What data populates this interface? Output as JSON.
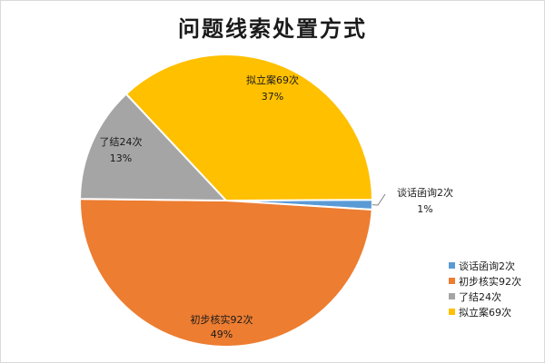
{
  "chart_data": {
    "type": "pie",
    "title": "问题线索处置方式",
    "slices": [
      {
        "name": "谈话函询2次",
        "value": 2,
        "percent_label": "1%",
        "color": "#5B9BD5"
      },
      {
        "name": "初步核实92次",
        "value": 92,
        "percent_label": "49%",
        "color": "#ED7D31"
      },
      {
        "name": "了结24次",
        "value": 24,
        "percent_label": "13%",
        "color": "#A5A5A5"
      },
      {
        "name": "拟立案69次",
        "value": 69,
        "percent_label": "37%",
        "color": "#FFC000"
      }
    ],
    "legend_position": "bottom-right"
  }
}
